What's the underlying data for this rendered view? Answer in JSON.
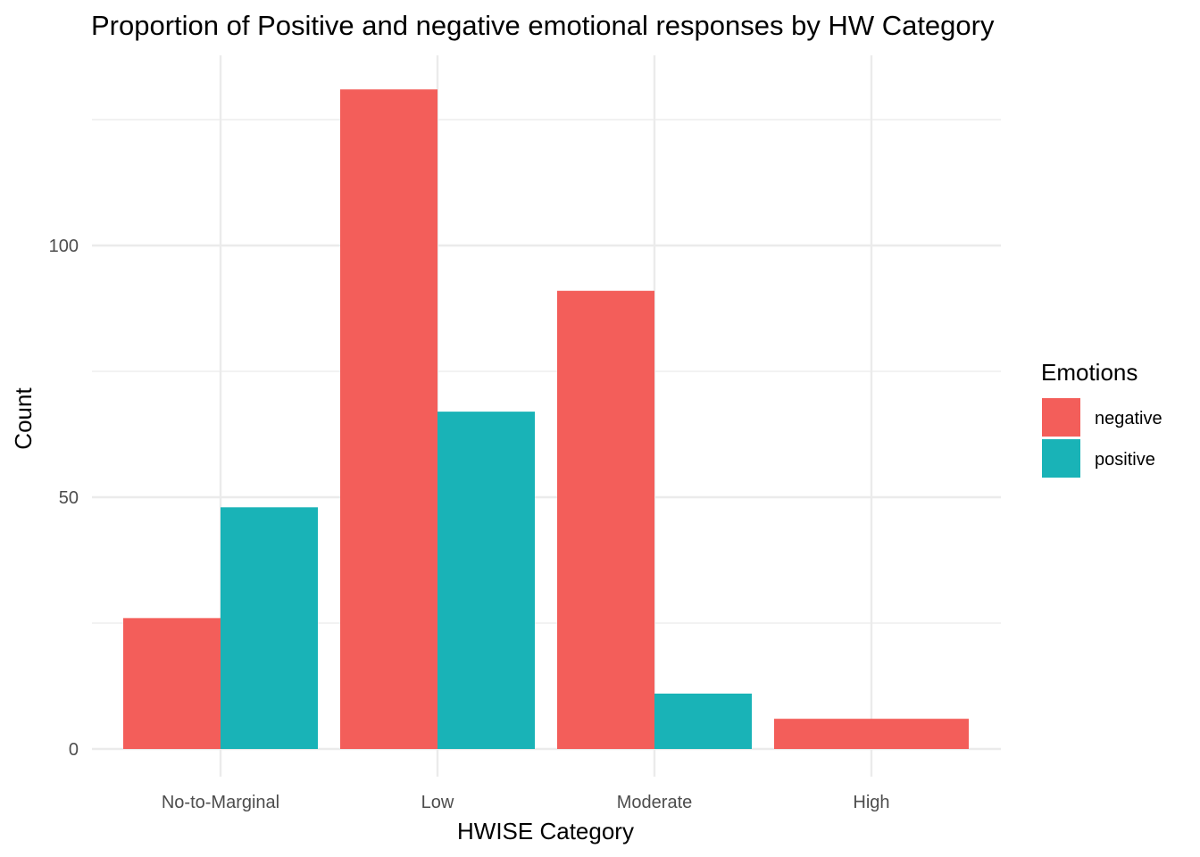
{
  "chart_data": {
    "type": "bar",
    "title": "Proportion of Positive and negative emotional responses by HW Category",
    "xlabel": "HWISE Category",
    "ylabel": "Count",
    "categories": [
      "No-to-Marginal",
      "Low",
      "Moderate",
      "High"
    ],
    "series": [
      {
        "name": "negative",
        "values": [
          26,
          131,
          91,
          6
        ],
        "color": "#F35E5A"
      },
      {
        "name": "positive",
        "values": [
          48,
          67,
          11,
          0
        ],
        "color": "#19B3B7"
      }
    ],
    "ylim": [
      0,
      135
    ],
    "y_ticks": [
      0,
      50,
      100
    ],
    "y_tick_labels": [
      "0",
      "50",
      "100"
    ],
    "grid": true,
    "legend": {
      "title": "Emotions",
      "position": "right"
    },
    "colors": {
      "gridline": "#ebebeb",
      "background": "#ffffff"
    }
  }
}
